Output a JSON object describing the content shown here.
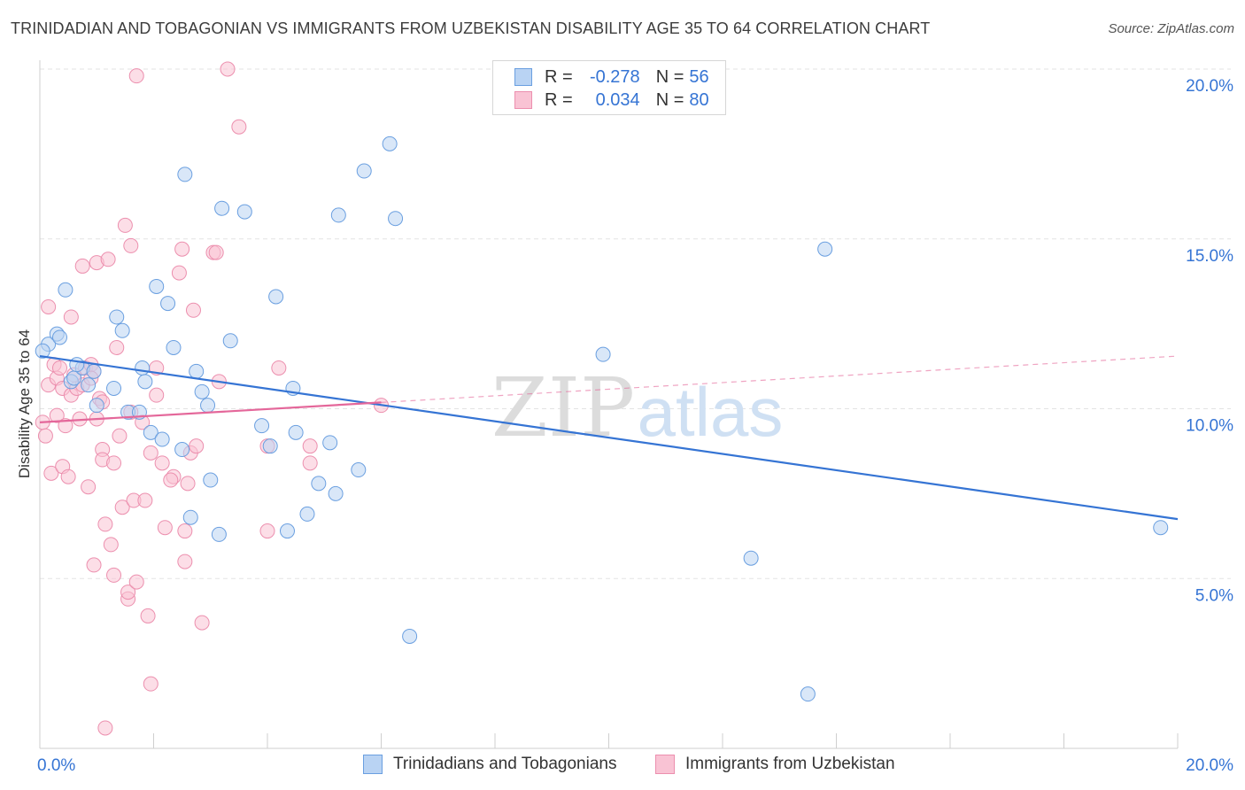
{
  "title": "TRINIDADIAN AND TOBAGONIAN VS IMMIGRANTS FROM UZBEKISTAN DISABILITY AGE 35 TO 64 CORRELATION CHART",
  "source": "Source: ZipAtlas.com",
  "watermark": {
    "zip": "ZIP",
    "atlas": "atlas"
  },
  "legend": {
    "rows": [
      {
        "r_label": "R =",
        "r_value": "-0.278",
        "n_label": "N =",
        "n_value": "56",
        "fill": "#b9d3f3",
        "stroke": "#6a9fe0"
      },
      {
        "r_label": "R =",
        "r_value": "0.034",
        "n_label": "N =",
        "n_value": "80",
        "fill": "#f9c3d4",
        "stroke": "#ec8fae"
      }
    ]
  },
  "bottom_legend": [
    {
      "label": "Trinidadians and Tobagonians",
      "fill": "#b9d3f3",
      "stroke": "#6a9fe0"
    },
    {
      "label": "Immigrants from Uzbekistan",
      "fill": "#f9c3d4",
      "stroke": "#ec8fae"
    }
  ],
  "chart_data": {
    "type": "scatter",
    "title": "TRINIDADIAN AND TOBAGONIAN VS IMMIGRANTS FROM UZBEKISTAN DISABILITY AGE 35 TO 64 CORRELATION CHART",
    "xlabel": "",
    "ylabel": "Disability Age 35 to 64",
    "xlim": [
      0,
      20
    ],
    "ylim": [
      0,
      20
    ],
    "x_tick_labels": [
      "0.0%",
      "20.0%"
    ],
    "y_tick_labels": [
      "5.0%",
      "10.0%",
      "15.0%",
      "20.0%"
    ],
    "y_ticks": [
      5,
      10,
      15,
      20
    ],
    "grid": "horizontal dashed",
    "legend_position": "top-center",
    "series": [
      {
        "name": "Trinidadians and Tobagonians",
        "color": "#3574d4",
        "fill": "#b9d3f3",
        "r": -0.278,
        "n": 56,
        "trend": {
          "x": [
            0.0,
            20.0
          ],
          "y": [
            11.55,
            6.75
          ],
          "solid_to": 20.0
        },
        "points": [
          [
            0.15,
            11.9
          ],
          [
            0.3,
            12.2
          ],
          [
            0.35,
            12.1
          ],
          [
            0.45,
            13.5
          ],
          [
            0.55,
            10.8
          ],
          [
            0.6,
            10.9
          ],
          [
            0.75,
            11.2
          ],
          [
            0.85,
            10.7
          ],
          [
            0.95,
            11.1
          ],
          [
            1.0,
            10.1
          ],
          [
            1.3,
            10.6
          ],
          [
            1.35,
            12.7
          ],
          [
            1.45,
            12.3
          ],
          [
            1.55,
            9.9
          ],
          [
            1.75,
            9.9
          ],
          [
            1.8,
            11.2
          ],
          [
            1.85,
            10.8
          ],
          [
            1.95,
            9.3
          ],
          [
            2.05,
            13.6
          ],
          [
            2.15,
            9.1
          ],
          [
            2.25,
            13.1
          ],
          [
            2.35,
            11.8
          ],
          [
            2.5,
            8.8
          ],
          [
            2.55,
            16.9
          ],
          [
            2.65,
            6.8
          ],
          [
            2.75,
            11.1
          ],
          [
            2.85,
            10.5
          ],
          [
            2.95,
            10.1
          ],
          [
            3.0,
            7.9
          ],
          [
            3.15,
            6.3
          ],
          [
            3.2,
            15.9
          ],
          [
            3.35,
            12.0
          ],
          [
            3.6,
            15.8
          ],
          [
            3.9,
            9.5
          ],
          [
            4.05,
            8.9
          ],
          [
            4.15,
            13.3
          ],
          [
            4.35,
            6.4
          ],
          [
            4.45,
            10.6
          ],
          [
            4.5,
            9.3
          ],
          [
            4.7,
            6.9
          ],
          [
            4.9,
            7.8
          ],
          [
            5.1,
            9.0
          ],
          [
            5.2,
            7.5
          ],
          [
            5.25,
            15.7
          ],
          [
            5.6,
            8.2
          ],
          [
            5.7,
            17.0
          ],
          [
            6.15,
            17.8
          ],
          [
            6.25,
            15.6
          ],
          [
            6.5,
            3.3
          ],
          [
            9.9,
            11.6
          ],
          [
            12.5,
            5.6
          ],
          [
            13.5,
            1.6
          ],
          [
            13.8,
            14.7
          ],
          [
            19.7,
            6.5
          ],
          [
            0.05,
            11.7
          ],
          [
            0.65,
            11.3
          ]
        ]
      },
      {
        "name": "Immigrants from Uzbekistan",
        "color": "#e4679a",
        "fill": "#f9c3d4",
        "r": 0.034,
        "n": 80,
        "trend": {
          "x": [
            0.0,
            20.0
          ],
          "y": [
            9.6,
            11.55
          ],
          "solid_to": 6.0
        },
        "points": [
          [
            0.05,
            9.6
          ],
          [
            0.1,
            9.2
          ],
          [
            0.15,
            10.7
          ],
          [
            0.15,
            13.0
          ],
          [
            0.2,
            8.1
          ],
          [
            0.25,
            11.3
          ],
          [
            0.3,
            10.9
          ],
          [
            0.3,
            9.8
          ],
          [
            0.35,
            11.2
          ],
          [
            0.4,
            10.6
          ],
          [
            0.4,
            8.3
          ],
          [
            0.45,
            9.5
          ],
          [
            0.5,
            8.0
          ],
          [
            0.55,
            12.7
          ],
          [
            0.55,
            10.4
          ],
          [
            0.65,
            10.6
          ],
          [
            0.7,
            9.7
          ],
          [
            0.75,
            10.7
          ],
          [
            0.75,
            14.2
          ],
          [
            0.8,
            11.2
          ],
          [
            0.85,
            7.7
          ],
          [
            0.9,
            11.3
          ],
          [
            0.95,
            11.1
          ],
          [
            0.95,
            5.4
          ],
          [
            1.0,
            9.7
          ],
          [
            1.05,
            10.3
          ],
          [
            1.0,
            14.3
          ],
          [
            1.1,
            8.8
          ],
          [
            1.1,
            8.5
          ],
          [
            1.15,
            6.6
          ],
          [
            1.15,
            0.6
          ],
          [
            1.2,
            14.4
          ],
          [
            1.25,
            6.0
          ],
          [
            1.3,
            5.1
          ],
          [
            1.3,
            8.4
          ],
          [
            1.35,
            11.8
          ],
          [
            1.4,
            9.2
          ],
          [
            1.45,
            7.1
          ],
          [
            1.5,
            15.4
          ],
          [
            1.55,
            4.4
          ],
          [
            1.55,
            4.6
          ],
          [
            1.6,
            14.8
          ],
          [
            1.65,
            7.3
          ],
          [
            1.7,
            4.9
          ],
          [
            1.7,
            19.8
          ],
          [
            1.8,
            9.6
          ],
          [
            1.85,
            7.3
          ],
          [
            1.9,
            3.9
          ],
          [
            1.95,
            8.7
          ],
          [
            1.95,
            1.9
          ],
          [
            2.05,
            10.4
          ],
          [
            2.05,
            11.2
          ],
          [
            2.15,
            8.4
          ],
          [
            2.2,
            6.5
          ],
          [
            2.35,
            8.0
          ],
          [
            2.45,
            14.0
          ],
          [
            2.5,
            14.7
          ],
          [
            2.55,
            6.4
          ],
          [
            2.55,
            5.5
          ],
          [
            2.6,
            7.8
          ],
          [
            2.65,
            8.7
          ],
          [
            2.7,
            12.9
          ],
          [
            2.75,
            8.9
          ],
          [
            2.85,
            3.7
          ],
          [
            3.05,
            14.6
          ],
          [
            3.1,
            14.6
          ],
          [
            3.15,
            10.8
          ],
          [
            3.3,
            20.0
          ],
          [
            3.5,
            18.3
          ],
          [
            4.0,
            8.9
          ],
          [
            4.0,
            6.4
          ],
          [
            4.2,
            11.2
          ],
          [
            4.75,
            8.9
          ],
          [
            4.75,
            8.4
          ],
          [
            6.0,
            10.1
          ],
          [
            1.6,
            9.9
          ],
          [
            0.9,
            10.9
          ],
          [
            2.3,
            7.9
          ],
          [
            0.6,
            11.0
          ],
          [
            1.1,
            10.2
          ]
        ]
      }
    ]
  }
}
